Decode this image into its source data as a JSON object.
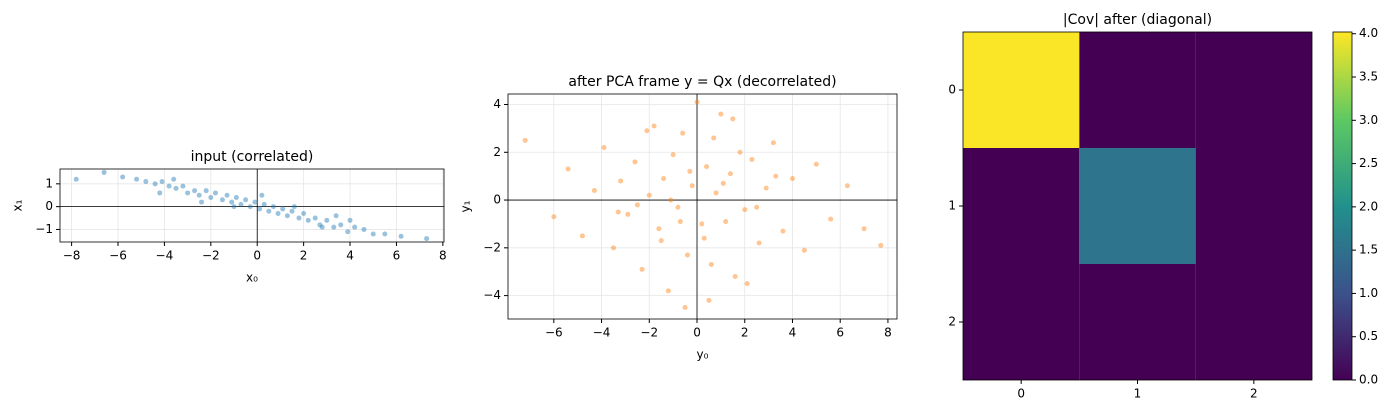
{
  "chart_data": [
    {
      "type": "scatter",
      "title": "input (correlated)",
      "xlabel": "x₀",
      "ylabel": "x₁",
      "color": "#1f77b4",
      "grid": true,
      "zero_lines": true,
      "x": [
        -6.6,
        -5.8,
        -5.2,
        -4.8,
        -4.4,
        -4.1,
        -3.8,
        -3.5,
        -3.2,
        -3.0,
        -2.7,
        -2.5,
        -2.2,
        -2.0,
        -1.8,
        -1.5,
        -1.3,
        -1.1,
        -0.9,
        -0.7,
        -0.5,
        -0.3,
        -0.1,
        0.1,
        0.3,
        0.5,
        0.7,
        0.9,
        1.1,
        1.3,
        1.5,
        1.8,
        2.0,
        2.2,
        2.5,
        2.7,
        3.0,
        3.3,
        3.6,
        3.9,
        4.2,
        4.6,
        5.0,
        5.5,
        6.2,
        7.3,
        -7.8,
        -3.6,
        -2.4,
        -1.0,
        0.2,
        1.6,
        2.8,
        4.0,
        -4.2,
        3.4
      ],
      "values": [
        1.5,
        1.3,
        1.2,
        1.1,
        1.0,
        1.1,
        0.9,
        0.8,
        0.9,
        0.6,
        0.7,
        0.5,
        0.7,
        0.4,
        0.6,
        0.3,
        0.5,
        0.2,
        0.4,
        0.1,
        0.3,
        0.0,
        0.2,
        -0.1,
        0.1,
        -0.2,
        0.0,
        -0.3,
        -0.1,
        -0.4,
        -0.2,
        -0.5,
        -0.3,
        -0.6,
        -0.5,
        -0.8,
        -0.6,
        -0.9,
        -0.8,
        -1.1,
        -0.9,
        -1.0,
        -1.2,
        -1.2,
        -1.3,
        -1.4,
        1.2,
        1.2,
        0.2,
        0.0,
        0.5,
        0.0,
        -0.9,
        -0.6,
        0.6,
        -0.4
      ],
      "xlim": [
        -8.5,
        8.05
      ],
      "ylim": [
        -1.55,
        1.65
      ],
      "xticks": [
        {
          "value": -8,
          "label": "−8"
        },
        {
          "value": -6,
          "label": "−6"
        },
        {
          "value": -4,
          "label": "−4"
        },
        {
          "value": -2,
          "label": "−2"
        },
        0,
        2,
        4,
        6,
        8
      ],
      "yticks": [
        {
          "value": -1,
          "label": "−1"
        },
        0,
        1
      ]
    },
    {
      "type": "scatter",
      "title": "after PCA frame y = Qx (decorrelated)",
      "xlabel": "y₀",
      "ylabel": "y₁",
      "color": "#ff7f0e",
      "grid": true,
      "zero_lines": true,
      "x": [
        -7.2,
        -6.0,
        -5.4,
        -4.8,
        -4.3,
        -3.9,
        -3.5,
        -3.2,
        -2.9,
        -2.6,
        -2.3,
        -2.0,
        -1.8,
        -1.6,
        -1.4,
        -1.2,
        -1.0,
        -0.8,
        -0.6,
        -0.4,
        -0.2,
        0.0,
        0.2,
        0.4,
        0.6,
        0.8,
        1.0,
        1.2,
        1.4,
        1.6,
        1.8,
        2.0,
        2.3,
        2.6,
        2.9,
        3.2,
        3.6,
        4.0,
        4.5,
        5.0,
        5.6,
        6.3,
        7.0,
        7.7,
        -1.5,
        -0.5,
        0.5,
        1.5,
        -2.5,
        2.5,
        -0.3,
        0.3,
        -1.1,
        1.1,
        -3.3,
        3.3,
        -0.7,
        0.7,
        -2.1,
        2.1
      ],
      "values": [
        2.5,
        -0.7,
        1.3,
        -1.5,
        0.4,
        2.2,
        -2.0,
        0.8,
        -0.6,
        1.6,
        -2.9,
        0.2,
        3.1,
        -1.2,
        0.9,
        -3.8,
        1.9,
        -0.3,
        2.8,
        -2.3,
        0.6,
        4.1,
        -1.0,
        1.4,
        -2.7,
        0.3,
        3.6,
        -0.9,
        1.1,
        -3.2,
        2.0,
        -0.4,
        1.7,
        -1.8,
        0.5,
        2.4,
        -1.3,
        0.9,
        -2.1,
        1.5,
        -0.8,
        0.6,
        -1.2,
        -1.9,
        -1.7,
        -4.5,
        -4.2,
        3.4,
        -0.2,
        -0.3,
        1.2,
        -1.6,
        0.0,
        0.7,
        -0.5,
        1.0,
        -0.9,
        2.6,
        2.9,
        -3.5
      ],
      "xlim": [
        -7.92,
        8.38
      ],
      "ylim": [
        -4.98,
        4.44
      ],
      "xticks": [
        {
          "value": -6,
          "label": "−6"
        },
        {
          "value": -4,
          "label": "−4"
        },
        {
          "value": -2,
          "label": "−2"
        },
        0,
        2,
        4,
        6,
        8
      ],
      "yticks": [
        {
          "value": -4,
          "label": "−4"
        },
        {
          "value": -2,
          "label": "−2"
        },
        0,
        2,
        4
      ]
    },
    {
      "type": "heatmap",
      "title": "|Cov| after (diagonal)",
      "colormap": "viridis",
      "values": [
        [
          4.0,
          0,
          0
        ],
        [
          0,
          1.55,
          0
        ],
        [
          0,
          0,
          0
        ]
      ],
      "xlim": [
        -0.5,
        2.5
      ],
      "ylim": [
        2.5,
        -0.5
      ],
      "xticks": [
        0,
        1,
        2
      ],
      "yticks": [
        0,
        1,
        2
      ],
      "colorbar": {
        "lim": [
          0,
          4.02
        ],
        "ticks": [
          {
            "value": 0,
            "label": "0.0"
          },
          {
            "value": 0.5,
            "label": "0.5"
          },
          {
            "value": 1,
            "label": "1.0"
          },
          {
            "value": 1.5,
            "label": "1.5"
          },
          {
            "value": 2,
            "label": "2.0"
          },
          {
            "value": 2.5,
            "label": "2.5"
          },
          {
            "value": 3,
            "label": "3.0"
          },
          {
            "value": 3.5,
            "label": "3.5"
          },
          {
            "value": 4,
            "label": "4.0"
          }
        ]
      }
    }
  ]
}
